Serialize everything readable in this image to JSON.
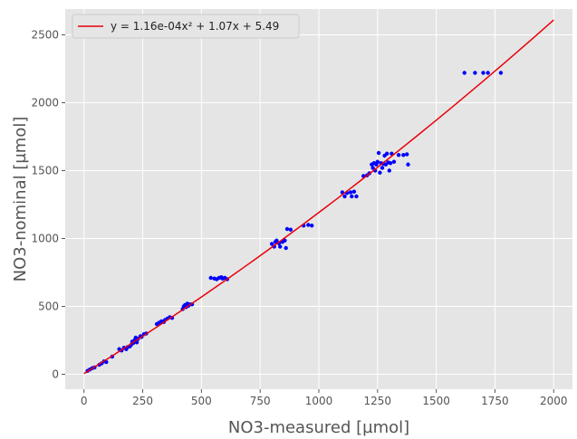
{
  "chart_data": {
    "type": "scatter",
    "title": "",
    "xlabel": "NO3-measured [µmol]",
    "ylabel": "NO3-nominal [µmol]",
    "xlim": [
      -80,
      2080
    ],
    "ylim": [
      -110,
      2690
    ],
    "xticks": [
      0,
      250,
      500,
      750,
      1000,
      1250,
      1500,
      1750,
      2000
    ],
    "yticks": [
      0,
      500,
      1000,
      1500,
      2000,
      2500
    ],
    "grid": true,
    "legend_position": "upper-left",
    "fit": {
      "label": "y = 1.16e-04x² + 1.07x + 5.49",
      "coefficients": {
        "a": 0.000116,
        "b": 1.07,
        "c": 5.49
      },
      "x_range": [
        0,
        2000
      ],
      "color": "#e8000b"
    },
    "point_color": "#0000ff",
    "points": [
      [
        15,
        25
      ],
      [
        25,
        35
      ],
      [
        35,
        45
      ],
      [
        45,
        50
      ],
      [
        65,
        70
      ],
      [
        75,
        80
      ],
      [
        85,
        95
      ],
      [
        95,
        90
      ],
      [
        120,
        130
      ],
      [
        150,
        185
      ],
      [
        160,
        175
      ],
      [
        170,
        195
      ],
      [
        180,
        185
      ],
      [
        185,
        200
      ],
      [
        195,
        205
      ],
      [
        200,
        215
      ],
      [
        205,
        240
      ],
      [
        210,
        230
      ],
      [
        215,
        250
      ],
      [
        220,
        270
      ],
      [
        225,
        235
      ],
      [
        230,
        260
      ],
      [
        240,
        280
      ],
      [
        245,
        275
      ],
      [
        255,
        295
      ],
      [
        265,
        300
      ],
      [
        310,
        370
      ],
      [
        320,
        380
      ],
      [
        330,
        390
      ],
      [
        340,
        385
      ],
      [
        345,
        400
      ],
      [
        355,
        410
      ],
      [
        365,
        420
      ],
      [
        375,
        415
      ],
      [
        420,
        480
      ],
      [
        425,
        500
      ],
      [
        430,
        510
      ],
      [
        435,
        495
      ],
      [
        440,
        520
      ],
      [
        445,
        505
      ],
      [
        450,
        515
      ],
      [
        460,
        515
      ],
      [
        540,
        710
      ],
      [
        555,
        705
      ],
      [
        565,
        700
      ],
      [
        575,
        710
      ],
      [
        585,
        715
      ],
      [
        590,
        705
      ],
      [
        600,
        710
      ],
      [
        610,
        700
      ],
      [
        800,
        960
      ],
      [
        810,
        940
      ],
      [
        815,
        975
      ],
      [
        820,
        985
      ],
      [
        830,
        965
      ],
      [
        835,
        940
      ],
      [
        845,
        975
      ],
      [
        855,
        985
      ],
      [
        860,
        930
      ],
      [
        865,
        1070
      ],
      [
        880,
        1065
      ],
      [
        935,
        1095
      ],
      [
        955,
        1100
      ],
      [
        970,
        1095
      ],
      [
        1100,
        1340
      ],
      [
        1110,
        1310
      ],
      [
        1120,
        1335
      ],
      [
        1135,
        1340
      ],
      [
        1140,
        1310
      ],
      [
        1150,
        1345
      ],
      [
        1160,
        1310
      ],
      [
        1190,
        1460
      ],
      [
        1205,
        1465
      ],
      [
        1215,
        1480
      ],
      [
        1225,
        1545
      ],
      [
        1230,
        1520
      ],
      [
        1235,
        1555
      ],
      [
        1240,
        1500
      ],
      [
        1245,
        1545
      ],
      [
        1250,
        1565
      ],
      [
        1255,
        1630
      ],
      [
        1260,
        1485
      ],
      [
        1265,
        1555
      ],
      [
        1270,
        1520
      ],
      [
        1275,
        1550
      ],
      [
        1280,
        1610
      ],
      [
        1285,
        1545
      ],
      [
        1290,
        1625
      ],
      [
        1295,
        1560
      ],
      [
        1300,
        1500
      ],
      [
        1305,
        1555
      ],
      [
        1310,
        1625
      ],
      [
        1320,
        1565
      ],
      [
        1340,
        1615
      ],
      [
        1360,
        1615
      ],
      [
        1375,
        1620
      ],
      [
        1380,
        1545
      ],
      [
        1620,
        2220
      ],
      [
        1665,
        2220
      ],
      [
        1700,
        2220
      ],
      [
        1720,
        2220
      ],
      [
        1775,
        2220
      ]
    ]
  }
}
